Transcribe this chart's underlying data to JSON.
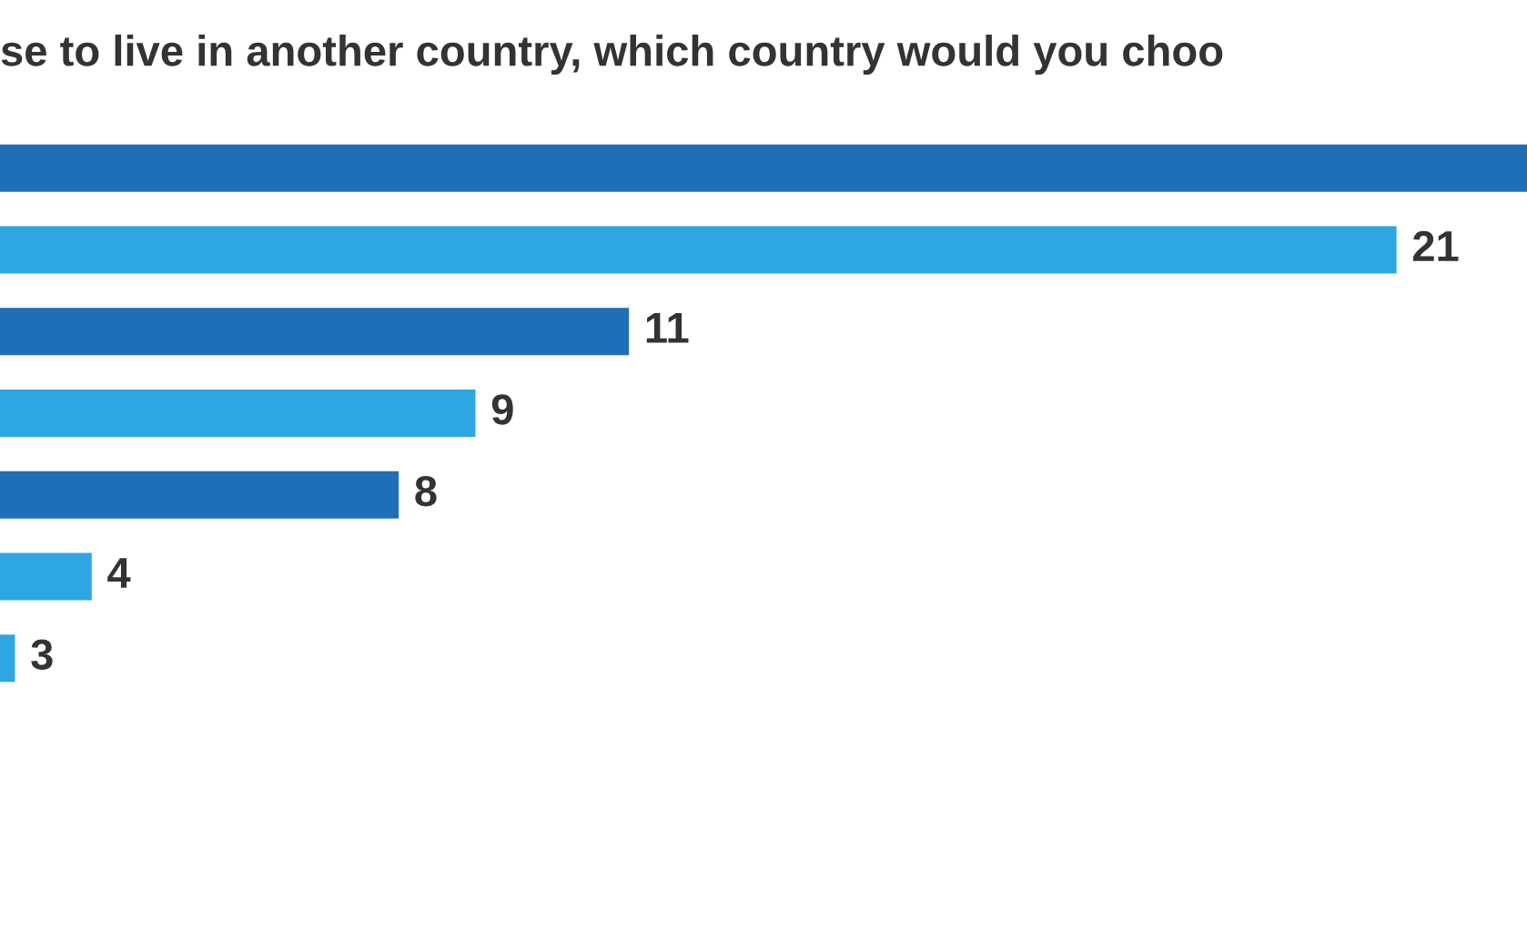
{
  "chart_data": {
    "type": "bar",
    "orientation": "horizontal",
    "title": "se to live in another country, which country would you choo",
    "categories": [
      null,
      null,
      null,
      null,
      null,
      null,
      null
    ],
    "values": [
      22.7,
      21,
      11,
      9,
      8,
      4,
      3
    ],
    "value_labels": [
      null,
      "21",
      "11",
      "9",
      "8",
      "4",
      "3"
    ],
    "colors": [
      "#1f6fb8",
      "#2ea6e2",
      "#1f6fb8",
      "#2ea6e2",
      "#1f6fb8",
      "#2ea6e2",
      "#2ea6e2"
    ],
    "grid": false,
    "legend": false
  }
}
